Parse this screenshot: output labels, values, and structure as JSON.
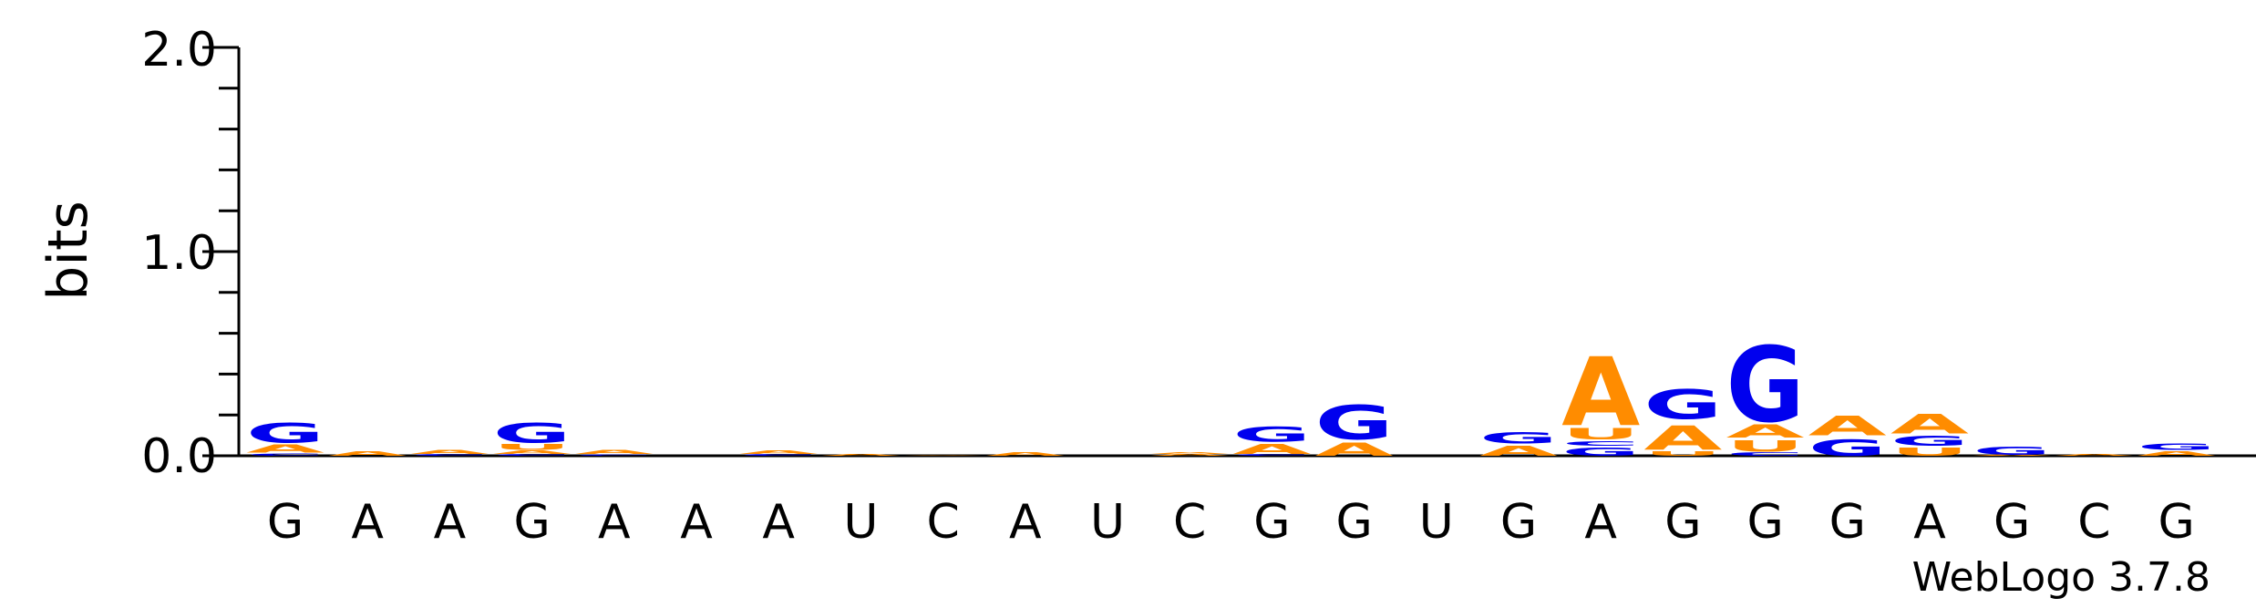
{
  "chart_data": {
    "type": "sequence-logo",
    "ylabel": "bits",
    "ylim": [
      0,
      2.0
    ],
    "yticks": [
      "0.0",
      "1.0",
      "2.0"
    ],
    "xlabels": [
      "G",
      "A",
      "A",
      "G",
      "A",
      "A",
      "A",
      "U",
      "C",
      "A",
      "U",
      "C",
      "G",
      "G",
      "U",
      "G",
      "A",
      "G",
      "G",
      "G",
      "A",
      "G",
      "C",
      "G"
    ],
    "watermark": "WebLogo 3.7.8",
    "colors": {
      "A": "#ff8c00",
      "U": "#ff8c00",
      "G": "#0000ee",
      "C": "#0000ee"
    },
    "columns": [
      [
        [
          "C",
          0.015
        ],
        [
          "A",
          0.05
        ],
        [
          "G",
          0.12
        ]
      ],
      [
        [
          "A",
          0.03
        ]
      ],
      [
        [
          "C",
          0.01
        ],
        [
          "A",
          0.025
        ]
      ],
      [
        [
          "C",
          0.01
        ],
        [
          "A",
          0.02
        ],
        [
          "U",
          0.035
        ],
        [
          "G",
          0.12
        ]
      ],
      [
        [
          "C",
          0.008
        ],
        [
          "A",
          0.025
        ]
      ],
      [],
      [
        [
          "C",
          0.01
        ],
        [
          "A",
          0.02
        ]
      ],
      [
        [
          "A",
          0.012
        ]
      ],
      [
        [
          "A",
          0.004
        ]
      ],
      [
        [
          "A",
          0.02
        ]
      ],
      [],
      [
        [
          "A",
          0.01
        ],
        [
          "A",
          0.01
        ]
      ],
      [
        [
          "C",
          0.01
        ],
        [
          "A",
          0.06
        ],
        [
          "G",
          0.09
        ]
      ],
      [
        [
          "A",
          0.08
        ],
        [
          "G",
          0.21
        ]
      ],
      [],
      [
        [
          "A",
          0.06
        ],
        [
          "G",
          0.07
        ]
      ],
      [
        [
          "G",
          0.05
        ],
        [
          "C",
          0.03
        ],
        [
          "U",
          0.07
        ],
        [
          "A",
          0.42
        ]
      ],
      [
        [
          "U",
          0.03
        ],
        [
          "A",
          0.15
        ],
        [
          "G",
          0.18
        ]
      ],
      [
        [
          "C",
          0.02
        ],
        [
          "U",
          0.07
        ],
        [
          "A",
          0.08
        ],
        [
          "G",
          0.46
        ]
      ],
      [
        [
          "G",
          0.1
        ],
        [
          "A",
          0.12
        ]
      ],
      [
        [
          "U",
          0.05
        ],
        [
          "G",
          0.06
        ],
        [
          "A",
          0.12
        ]
      ],
      [
        [
          "A",
          0.005
        ],
        [
          "G",
          0.05
        ]
      ],
      [
        [
          "A",
          0.01
        ]
      ],
      [
        [
          "A",
          0.03
        ],
        [
          "G",
          0.04
        ]
      ]
    ]
  }
}
